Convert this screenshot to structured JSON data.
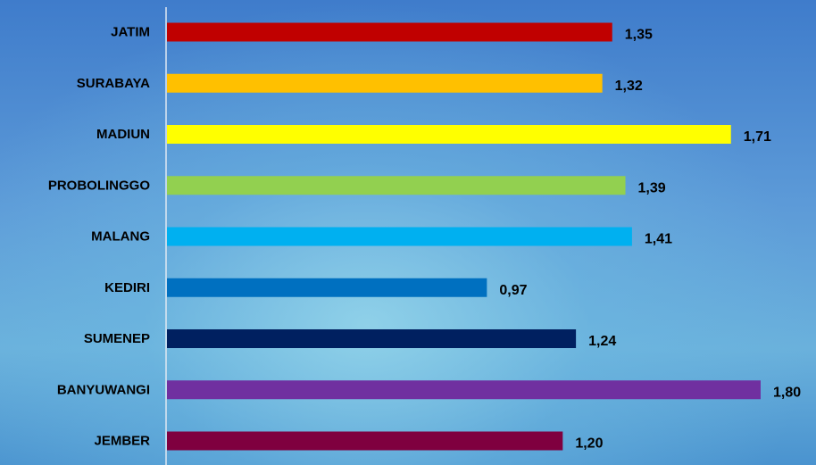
{
  "chart_data": {
    "type": "bar",
    "orientation": "horizontal",
    "categories": [
      "JATIM",
      "SURABAYA",
      "MADIUN",
      "PROBOLINGGO",
      "MALANG",
      "KEDIRI",
      "SUMENEP",
      "BANYUWANGI",
      "JEMBER"
    ],
    "values": [
      1.35,
      1.32,
      1.71,
      1.39,
      1.41,
      0.97,
      1.24,
      1.8,
      1.2
    ],
    "value_labels": [
      "1,35",
      "1,32",
      "1,71",
      "1,39",
      "1,41",
      "0,97",
      "1,24",
      "1,80",
      "1,20"
    ],
    "colors": [
      "#c00000",
      "#ffc000",
      "#ffff00",
      "#92d050",
      "#00b0f0",
      "#0070c0",
      "#002060",
      "#7030a0",
      "#7f003f"
    ],
    "title": "",
    "xlabel": "",
    "ylabel": "",
    "xlim": [
      0,
      1.8
    ],
    "grid": false,
    "legend": "none"
  }
}
